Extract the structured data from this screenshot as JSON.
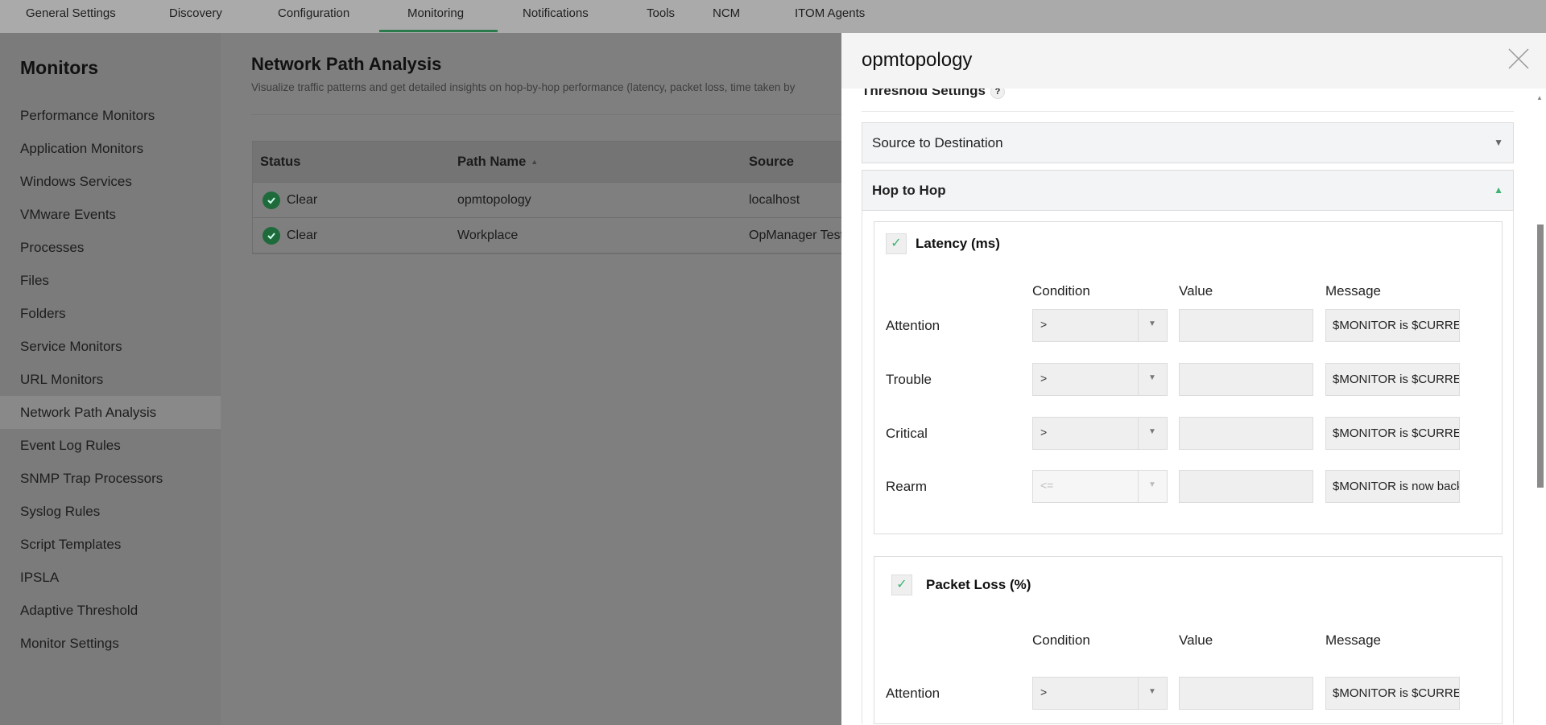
{
  "nav": {
    "tabs": [
      "General Settings",
      "Discovery",
      "Configuration",
      "Monitoring",
      "Notifications",
      "Tools",
      "NCM",
      "ITOM Agents"
    ],
    "active": "Monitoring"
  },
  "sidebar": {
    "title": "Monitors",
    "items": [
      "Performance Monitors",
      "Application Monitors",
      "Windows Services",
      "VMware Events",
      "Processes",
      "Files",
      "Folders",
      "Service Monitors",
      "URL Monitors",
      "Network Path Analysis",
      "Event Log Rules",
      "SNMP Trap Processors",
      "Syslog Rules",
      "Script Templates",
      "IPSLA",
      "Adaptive Threshold",
      "Monitor Settings"
    ],
    "active": "Network Path Analysis"
  },
  "main": {
    "title": "Network Path Analysis",
    "subtitle": "Visualize traffic patterns and get detailed insights on hop-by-hop performance (latency, packet loss, time taken by",
    "table": {
      "headers": [
        "Status",
        "Path Name",
        "Source"
      ],
      "rows": [
        {
          "status": "Clear",
          "path": "opmtopology",
          "source": "localhost"
        },
        {
          "status": "Clear",
          "path": "Workplace",
          "source": "OpManager Test"
        }
      ]
    }
  },
  "panel": {
    "title": "opmtopology",
    "threshold_title": "Threshold Settings",
    "help": "?",
    "sections": {
      "s2d": "Source to Destination",
      "h2h": "Hop to Hop"
    },
    "columns": {
      "condition": "Condition",
      "value": "Value",
      "message": "Message"
    },
    "latency": {
      "label": "Latency (ms)",
      "checked": true,
      "rows": [
        {
          "level": "Attention",
          "condition": ">",
          "value": "",
          "message": "$MONITOR is $CURRENTVALUE"
        },
        {
          "level": "Trouble",
          "condition": ">",
          "value": "",
          "message": "$MONITOR is $CURRENTVALUE"
        },
        {
          "level": "Critical",
          "condition": ">",
          "value": "",
          "message": "$MONITOR is $CURRENTVALUE"
        },
        {
          "level": "Rearm",
          "condition": "<=",
          "value": "",
          "message": "$MONITOR is now back to normal"
        }
      ]
    },
    "packet_loss": {
      "label": "Packet Loss (%)",
      "checked": true,
      "rows": [
        {
          "level": "Attention",
          "condition": ">",
          "value": "",
          "message": "$MONITOR is $CURRENTVALUE"
        }
      ]
    }
  },
  "colors": {
    "accent": "#2a7a4c",
    "link": "#27527f",
    "check": "#3cb371"
  }
}
